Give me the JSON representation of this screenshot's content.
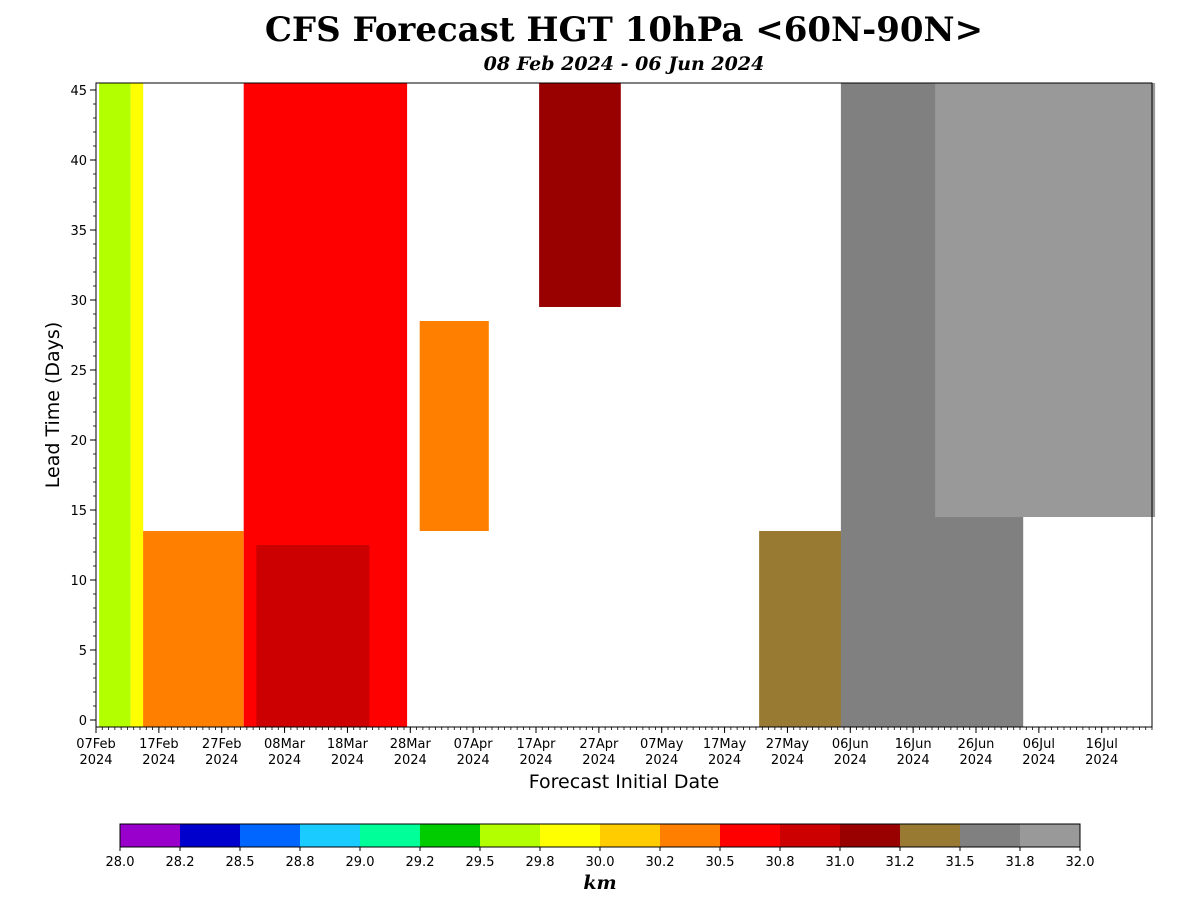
{
  "chart_data": {
    "type": "heatmap",
    "title": "CFS Forecast HGT 10hPa <60N-90N>",
    "subtitle": "08 Feb 2024 - 06 Jun 2024",
    "xlabel": "Forecast Initial Date",
    "ylabel": "Lead Time (Days)",
    "x_range": [
      "2024-02-07",
      "2024-07-24"
    ],
    "y_range": [
      -0.5,
      45.5
    ],
    "x_ticks": [
      {
        "date": "2024-02-07",
        "label": "07Feb",
        "year": "2024"
      },
      {
        "date": "2024-02-17",
        "label": "17Feb",
        "year": "2024"
      },
      {
        "date": "2024-02-27",
        "label": "27Feb",
        "year": "2024"
      },
      {
        "date": "2024-03-08",
        "label": "08Mar",
        "year": "2024"
      },
      {
        "date": "2024-03-18",
        "label": "18Mar",
        "year": "2024"
      },
      {
        "date": "2024-03-28",
        "label": "28Mar",
        "year": "2024"
      },
      {
        "date": "2024-04-07",
        "label": "07Apr",
        "year": "2024"
      },
      {
        "date": "2024-04-17",
        "label": "17Apr",
        "year": "2024"
      },
      {
        "date": "2024-04-27",
        "label": "27Apr",
        "year": "2024"
      },
      {
        "date": "2024-05-07",
        "label": "07May",
        "year": "2024"
      },
      {
        "date": "2024-05-17",
        "label": "17May",
        "year": "2024"
      },
      {
        "date": "2024-05-27",
        "label": "27May",
        "year": "2024"
      },
      {
        "date": "2024-06-06",
        "label": "06Jun",
        "year": "2024"
      },
      {
        "date": "2024-06-16",
        "label": "16Jun",
        "year": "2024"
      },
      {
        "date": "2024-06-26",
        "label": "26Jun",
        "year": "2024"
      },
      {
        "date": "2024-07-06",
        "label": "06Jul",
        "year": "2024"
      },
      {
        "date": "2024-07-16",
        "label": "16Jul",
        "year": "2024"
      }
    ],
    "y_ticks": [
      0,
      5,
      10,
      15,
      20,
      25,
      30,
      35,
      40,
      45
    ],
    "colorbar": {
      "label": "km",
      "boundaries": [
        "28.0",
        "28.2",
        "28.5",
        "28.8",
        "29.0",
        "29.2",
        "29.5",
        "29.8",
        "30.0",
        "30.2",
        "30.5",
        "30.8",
        "31.0",
        "31.2",
        "31.5",
        "31.8",
        "32.0"
      ],
      "colors": [
        "#9900cc",
        "#0000cc",
        "#0066ff",
        "#1acbff",
        "#00ff99",
        "#00cc00",
        "#b3ff00",
        "#ffff00",
        "#ffcc00",
        "#ff8000",
        "#ff0000",
        "#cc0000",
        "#990000",
        "#997a33",
        "#808080",
        "#999999"
      ]
    },
    "regions": [
      {
        "value": 29.6,
        "lead_days": [
          0,
          45
        ],
        "init_dates": [
          "2024-02-08",
          "2024-02-12"
        ]
      },
      {
        "value": 29.9,
        "lead_days": [
          0,
          45
        ],
        "init_dates": [
          "2024-02-13",
          "2024-02-14"
        ]
      },
      {
        "value": 30.4,
        "lead_days": [
          0,
          13
        ],
        "init_dates": [
          "2024-02-15",
          "2024-03-01"
        ]
      },
      {
        "value": 30.6,
        "lead_days": [
          0,
          45
        ],
        "init_dates": [
          "2024-03-02",
          "2024-03-27"
        ]
      },
      {
        "value": 30.9,
        "lead_days": [
          0,
          12
        ],
        "init_dates": [
          "2024-03-04",
          "2024-03-21"
        ]
      },
      {
        "value": 30.3,
        "lead_days": [
          14,
          28
        ],
        "init_dates": [
          "2024-03-30",
          "2024-04-09"
        ]
      },
      {
        "value": 31.1,
        "lead_days": [
          30,
          45
        ],
        "init_dates": [
          "2024-04-18",
          "2024-04-30"
        ]
      },
      {
        "value": 31.3,
        "lead_days": [
          0,
          13
        ],
        "init_dates": [
          "2024-05-23",
          "2024-06-06"
        ]
      },
      {
        "value": 31.6,
        "lead_days": [
          0,
          45
        ],
        "init_dates": [
          "2024-06-05",
          "2024-07-03"
        ]
      },
      {
        "value": 31.9,
        "lead_days": [
          15,
          45
        ],
        "init_dates": [
          "2024-06-20",
          "2024-07-24"
        ]
      }
    ]
  }
}
